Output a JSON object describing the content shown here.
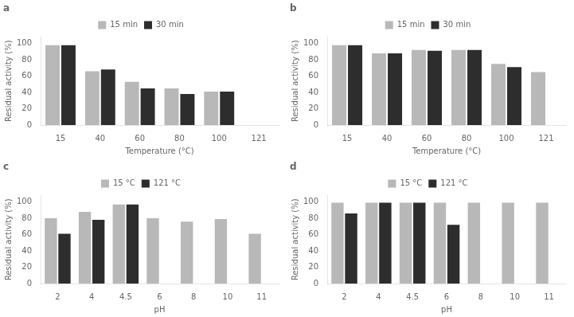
{
  "chart_data": [
    {
      "type": "bar",
      "title": "a",
      "categories": [
        "15",
        "40",
        "60",
        "80",
        "100",
        "121"
      ],
      "series": [
        {
          "name": "15 min",
          "color": "#b8b8b8",
          "values": [
            98,
            66,
            53,
            45,
            41,
            null
          ]
        },
        {
          "name": "30 min",
          "color": "#2d2d2d",
          "values": [
            98,
            68,
            45,
            38,
            41,
            null
          ]
        }
      ],
      "xlabel": "Temperature (°C)",
      "ylabel": "Residual activity (%)",
      "ylim": [
        0,
        108
      ],
      "yticks": [
        0,
        20,
        40,
        60,
        80,
        100
      ],
      "grid": false,
      "legend": "top"
    },
    {
      "type": "bar",
      "title": "b",
      "categories": [
        "15",
        "40",
        "60",
        "80",
        "100",
        "121"
      ],
      "series": [
        {
          "name": "15 min",
          "color": "#b8b8b8",
          "values": [
            98,
            88,
            92,
            92,
            75,
            65
          ]
        },
        {
          "name": "30 min",
          "color": "#2d2d2d",
          "values": [
            98,
            88,
            91,
            92,
            71,
            null
          ]
        }
      ],
      "xlabel": "Temperature (°C)",
      "ylabel": "Residual activity (%)",
      "ylim": [
        0,
        108
      ],
      "yticks": [
        0,
        20,
        40,
        60,
        80,
        100
      ],
      "grid": false,
      "legend": "top"
    },
    {
      "type": "bar",
      "title": "c",
      "categories": [
        "2",
        "4",
        "4.5",
        "6",
        "8",
        "10",
        "11"
      ],
      "series": [
        {
          "name": "15 °C",
          "color": "#b8b8b8",
          "values": [
            80,
            88,
            97,
            80,
            76,
            79,
            61
          ]
        },
        {
          "name": "121 °C",
          "color": "#2d2d2d",
          "values": [
            61,
            78,
            97,
            null,
            null,
            null,
            null
          ]
        }
      ],
      "xlabel": "pH",
      "ylabel": "Residual activity (%)",
      "ylim": [
        0,
        108
      ],
      "yticks": [
        0,
        20,
        40,
        60,
        80,
        100
      ],
      "grid": false,
      "legend": "top"
    },
    {
      "type": "bar",
      "title": "d",
      "categories": [
        "2",
        "4",
        "4.5",
        "6",
        "8",
        "10",
        "11"
      ],
      "series": [
        {
          "name": "15 °C",
          "color": "#b8b8b8",
          "values": [
            99,
            99,
            99,
            99,
            99,
            99,
            99
          ]
        },
        {
          "name": "121 °C",
          "color": "#2d2d2d",
          "values": [
            86,
            99,
            99,
            72,
            null,
            null,
            null
          ]
        }
      ],
      "xlabel": "pH",
      "ylabel": "Residual activity (%)",
      "ylim": [
        0,
        108
      ],
      "yticks": [
        0,
        20,
        40,
        60,
        80,
        100
      ],
      "grid": false,
      "legend": "top"
    }
  ]
}
